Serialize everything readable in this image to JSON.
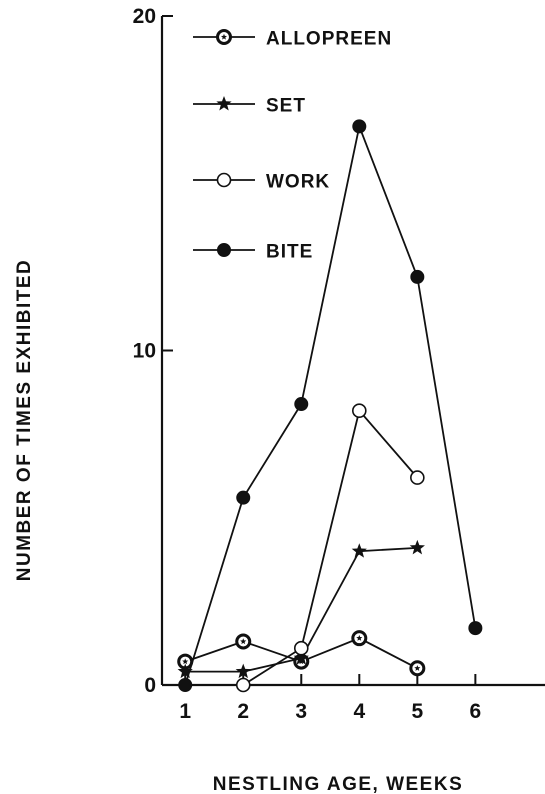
{
  "chart_data": {
    "type": "line",
    "title": "",
    "xlabel": "NESTLING AGE, WEEKS",
    "ylabel": "NUMBER OF TIMES EXHIBITED",
    "x_ticks": [
      1,
      2,
      3,
      4,
      5,
      6
    ],
    "y_ticks": [
      0,
      10,
      20
    ],
    "xlim": [
      0.6,
      7.2
    ],
    "ylim": [
      0,
      20
    ],
    "grid": false,
    "legend_position": "top-left",
    "series": [
      {
        "name": "ALLOPREEN",
        "marker": "circle-star",
        "points": [
          [
            1,
            0.7
          ],
          [
            2,
            1.3
          ],
          [
            3,
            0.7
          ],
          [
            4,
            1.4
          ],
          [
            5,
            0.5
          ]
        ]
      },
      {
        "name": "SET",
        "marker": "star",
        "points": [
          [
            1,
            0.4
          ],
          [
            2,
            0.4
          ],
          [
            3,
            0.8
          ],
          [
            4,
            4.0
          ],
          [
            5,
            4.1
          ]
        ]
      },
      {
        "name": "WORK",
        "marker": "open-circle",
        "points": [
          [
            2,
            0.0
          ],
          [
            3,
            1.1
          ],
          [
            4,
            8.2
          ],
          [
            5,
            6.2
          ]
        ]
      },
      {
        "name": "BITE",
        "marker": "filled-circle",
        "points": [
          [
            1,
            0.0
          ],
          [
            2,
            5.6
          ],
          [
            3,
            8.4
          ],
          [
            4,
            16.7
          ],
          [
            5,
            12.2
          ],
          [
            6,
            1.7
          ]
        ]
      }
    ]
  }
}
